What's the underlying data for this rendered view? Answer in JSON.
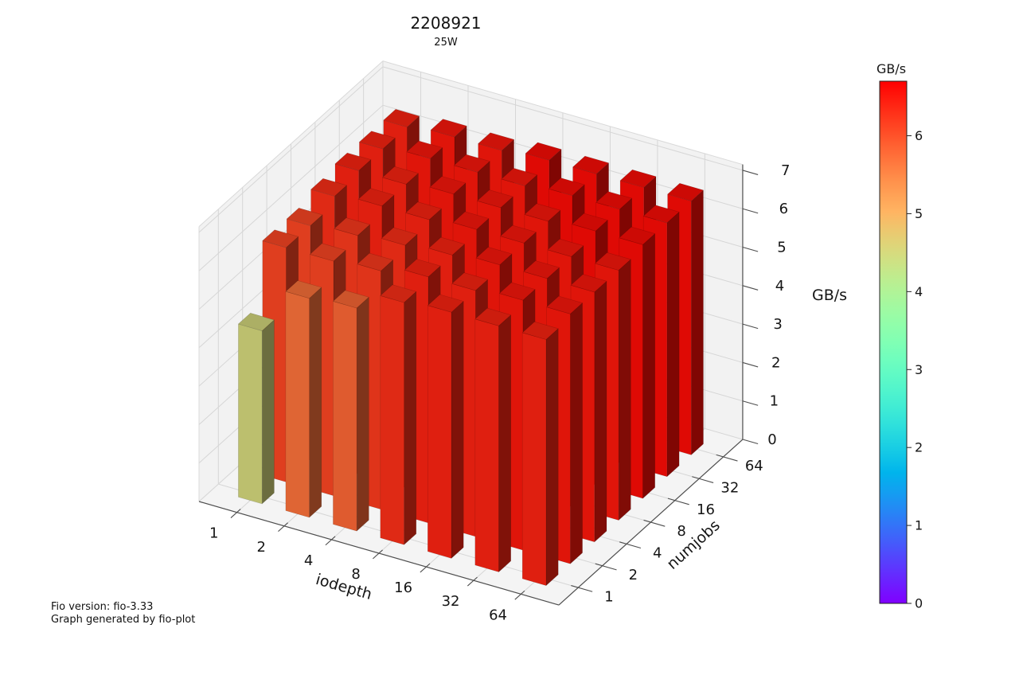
{
  "header": {
    "title": "2208921",
    "subtitle": "25W"
  },
  "footer": {
    "line1": "Fio version: fio-3.33",
    "line2": "Graph generated by fio-plot"
  },
  "chart_data": {
    "type": "bar",
    "projection": "3d",
    "title": "2208921",
    "subtitle": "25W",
    "xlabel": "iodepth",
    "ylabel": "numjobs",
    "zlabel": "GB/s",
    "x_ticklabels": [
      "1",
      "2",
      "4",
      "8",
      "16",
      "32",
      "64"
    ],
    "y_ticklabels": [
      "1",
      "2",
      "4",
      "8",
      "16",
      "32",
      "64"
    ],
    "z_ticks": [
      0,
      1,
      2,
      3,
      4,
      5,
      6,
      7
    ],
    "zlim": [
      0,
      7
    ],
    "grid": true,
    "colormap": "rainbow",
    "colorbar": {
      "label": "GB/s",
      "ticks": [
        0,
        1,
        2,
        3,
        4,
        5,
        6
      ],
      "vmin": 0,
      "vmax": 6.7
    },
    "series": [
      {
        "name": "numjobs=1",
        "values": [
          4.5,
          5.7,
          5.8,
          6.3,
          6.4,
          6.4,
          6.4
        ]
      },
      {
        "name": "numjobs=2",
        "values": [
          6.1,
          6.1,
          6.2,
          6.4,
          6.4,
          6.5,
          6.5
        ]
      },
      {
        "name": "numjobs=4",
        "values": [
          6.1,
          6.2,
          6.3,
          6.4,
          6.5,
          6.5,
          6.5
        ]
      },
      {
        "name": "numjobs=8",
        "values": [
          6.3,
          6.4,
          6.4,
          6.5,
          6.5,
          6.5,
          6.5
        ]
      },
      {
        "name": "numjobs=16",
        "values": [
          6.4,
          6.4,
          6.5,
          6.5,
          6.5,
          6.6,
          6.6
        ]
      },
      {
        "name": "numjobs=32",
        "values": [
          6.4,
          6.5,
          6.5,
          6.5,
          6.6,
          6.6,
          6.6
        ]
      },
      {
        "name": "numjobs=64",
        "values": [
          6.4,
          6.5,
          6.5,
          6.6,
          6.6,
          6.6,
          6.6
        ]
      }
    ],
    "colors": {
      "pane": "#f2f2f2",
      "floor": "#f4f4f4",
      "grid": "#d6d6d6",
      "pane_edge": "#d9d9d9",
      "axis": "#4d4d4d",
      "text": "#151515"
    }
  }
}
